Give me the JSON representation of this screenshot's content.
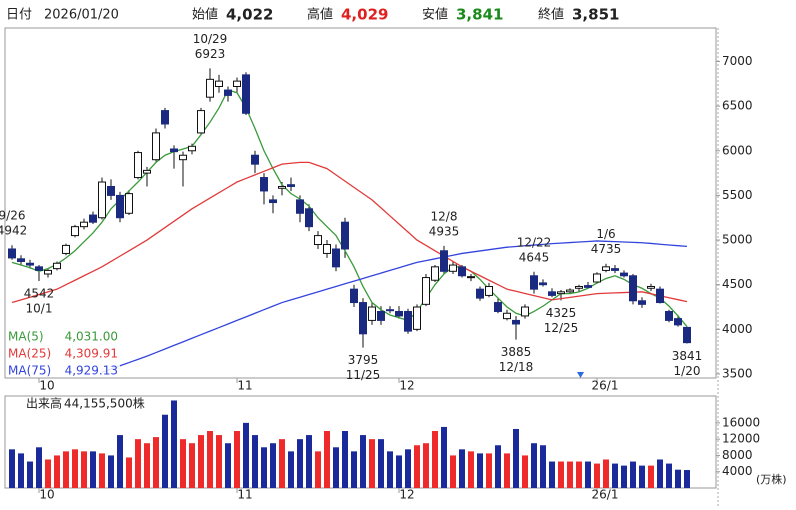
{
  "header": {
    "date_label": "日付",
    "date": "2026/01/20",
    "open_label": "始値",
    "open": "4,022",
    "high_label": "高値",
    "high": "4,029",
    "low_label": "安値",
    "low": "3,841",
    "close_label": "終値",
    "close": "3,851"
  },
  "chart_data": {
    "type": "candlestick",
    "categories": [
      null,
      null,
      null,
      "10",
      null,
      null,
      null,
      null,
      null,
      null,
      null,
      null,
      null,
      null,
      null,
      null,
      null,
      null,
      null,
      null,
      null,
      null,
      null,
      null,
      null,
      "11",
      null,
      null,
      null,
      null,
      null,
      null,
      null,
      null,
      null,
      null,
      null,
      null,
      null,
      null,
      null,
      null,
      null,
      "12",
      null,
      null,
      null,
      null,
      null,
      null,
      null,
      null,
      null,
      null,
      null,
      null,
      null,
      null,
      null,
      null,
      null,
      null,
      null,
      null,
      null,
      "26/1",
      null,
      null,
      null,
      null,
      null,
      null,
      null,
      null,
      null,
      null
    ],
    "open": [
      4900,
      4790,
      4740,
      4700,
      4620,
      4680,
      4850,
      5050,
      5150,
      5280,
      5250,
      5600,
      5500,
      5300,
      5700,
      5750,
      5900,
      6450,
      6020,
      5900,
      6000,
      6200,
      6600,
      6720,
      6680,
      6720,
      6850,
      5950,
      5700,
      5450,
      5580,
      5620,
      5450,
      5350,
      4950,
      4850,
      4900,
      5200,
      4450,
      4300,
      4100,
      4200,
      4220,
      4200,
      4200,
      4000,
      4280,
      4550,
      4880,
      4650,
      4700,
      4580,
      4450,
      4380,
      4300,
      4120,
      4100,
      4150,
      4600,
      4520,
      4420,
      4400,
      4420,
      4460,
      4490,
      4530,
      4660,
      4680,
      4630,
      4600,
      4320,
      4460,
      4450,
      4200,
      4120,
      4022
    ],
    "high": [
      4942,
      4830,
      4780,
      4720,
      4680,
      4760,
      4960,
      5170,
      5240,
      5320,
      5700,
      5680,
      5540,
      5560,
      6000,
      5820,
      6250,
      6480,
      6060,
      5990,
      6080,
      6480,
      6923,
      6850,
      6720,
      6820,
      6880,
      6000,
      5750,
      5500,
      5650,
      5700,
      5500,
      5400,
      5100,
      5000,
      4950,
      5250,
      4500,
      4350,
      4300,
      4260,
      4260,
      4260,
      4230,
      4280,
      4620,
      4720,
      4935,
      4760,
      4720,
      4620,
      4480,
      4520,
      4350,
      4220,
      4150,
      4280,
      4645,
      4560,
      4460,
      4440,
      4460,
      4500,
      4530,
      4640,
      4735,
      4720,
      4660,
      4620,
      4360,
      4510,
      4480,
      4220,
      4160,
      4029
    ],
    "low": [
      4780,
      4720,
      4680,
      4542,
      4580,
      4660,
      4830,
      5030,
      5120,
      5180,
      5230,
      5450,
      5200,
      5280,
      5680,
      5600,
      5880,
      6250,
      5800,
      5600,
      5960,
      6180,
      6550,
      6650,
      6550,
      6650,
      6400,
      5750,
      5400,
      5300,
      5500,
      5550,
      5200,
      5100,
      4900,
      4800,
      4650,
      4800,
      4250,
      3795,
      4050,
      4050,
      4180,
      4120,
      3950,
      3980,
      4260,
      4530,
      4620,
      4620,
      4580,
      4540,
      4320,
      4360,
      4180,
      4100,
      3885,
      4120,
      4400,
      4480,
      4360,
      4325,
      4400,
      4420,
      4460,
      4510,
      4640,
      4630,
      4580,
      4280,
      4240,
      4430,
      4290,
      4080,
      4030,
      3841
    ],
    "close": [
      4800,
      4760,
      4720,
      4660,
      4660,
      4740,
      4940,
      5150,
      5200,
      5200,
      5650,
      5500,
      5250,
      5520,
      5980,
      5780,
      6200,
      6300,
      5990,
      5950,
      6050,
      6450,
      6800,
      6780,
      6620,
      6780,
      6420,
      5850,
      5550,
      5420,
      5600,
      5600,
      5300,
      5150,
      5050,
      4950,
      4700,
      4900,
      4300,
      3950,
      4250,
      4100,
      4210,
      4150,
      3980,
      4250,
      4580,
      4700,
      4650,
      4720,
      4600,
      4590,
      4350,
      4480,
      4200,
      4180,
      4060,
      4250,
      4450,
      4500,
      4380,
      4420,
      4440,
      4480,
      4470,
      4620,
      4700,
      4660,
      4600,
      4320,
      4280,
      4480,
      4300,
      4100,
      4050,
      3851
    ],
    "up_color": "#ffffff",
    "down_color": "#1a2a80",
    "ylim": [
      3455,
      7375
    ],
    "yticks": [
      3500,
      4000,
      4500,
      5000,
      5500,
      6000,
      6500,
      7000
    ],
    "series": [
      {
        "name": "MA(5)",
        "color": "#3a9a3a",
        "current": {
          "value": 4031.0,
          "label": "4,031.00"
        },
        "values": [
          4750,
          4720,
          4690,
          4650,
          4680,
          4730,
          4800,
          4880,
          4980,
          5080,
          5200,
          5350,
          5450,
          5550,
          5650,
          5760,
          5870,
          5950,
          5990,
          6020,
          6050,
          6180,
          6320,
          6480,
          6680,
          6650,
          6480,
          6250,
          6000,
          5800,
          5620,
          5520,
          5460,
          5380,
          5250,
          5150,
          5050,
          4880,
          4700,
          4480,
          4300,
          4220,
          4160,
          4130,
          4100,
          4200,
          4350,
          4500,
          4620,
          4700,
          4700,
          4650,
          4560,
          4450,
          4350,
          4250,
          4180,
          4150,
          4200,
          4260,
          4330,
          4400,
          4400,
          4420,
          4460,
          4520,
          4570,
          4600,
          4560,
          4500,
          4460,
          4400,
          4350,
          4260,
          4150,
          4031.0
        ]
      },
      {
        "name": "MA(25)",
        "color": "#e23a3a",
        "current": {
          "value": 4309.91,
          "label": "4,309.91"
        },
        "values": [
          4300,
          4330,
          4360,
          4390,
          4420,
          4450,
          4500,
          4550,
          4600,
          4650,
          4700,
          4760,
          4820,
          4880,
          4940,
          5000,
          5070,
          5140,
          5210,
          5280,
          5350,
          5410,
          5470,
          5530,
          5590,
          5650,
          5690,
          5730,
          5770,
          5810,
          5850,
          5860,
          5870,
          5870,
          5835,
          5800,
          5730,
          5660,
          5590,
          5520,
          5450,
          5360,
          5270,
          5180,
          5090,
          5000,
          4940,
          4880,
          4820,
          4760,
          4700,
          4650,
          4600,
          4550,
          4500,
          4450,
          4426,
          4402,
          4378,
          4354,
          4330,
          4344,
          4358,
          4372,
          4386,
          4400,
          4404,
          4408,
          4412,
          4416,
          4420,
          4398,
          4376,
          4354,
          4332,
          4309.91
        ]
      },
      {
        "name": "MA(75)",
        "color": "#3344dd",
        "current": {
          "value": 4929.13,
          "label": "4,929.13"
        },
        "values": [
          null,
          null,
          null,
          null,
          null,
          null,
          null,
          null,
          null,
          null,
          3520,
          3556,
          3592,
          3628,
          3664,
          3700,
          3740,
          3780,
          3820,
          3860,
          3900,
          3940,
          3980,
          4020,
          4060,
          4100,
          4140,
          4180,
          4220,
          4260,
          4300,
          4330,
          4360,
          4390,
          4420,
          4450,
          4480,
          4510,
          4540,
          4570,
          4600,
          4630,
          4660,
          4690,
          4720,
          4750,
          4770,
          4790,
          4810,
          4830,
          4850,
          4864,
          4878,
          4892,
          4906,
          4920,
          4928,
          4936,
          4944,
          4952,
          4960,
          4966,
          4972,
          4978,
          4984,
          4990,
          4986,
          4982,
          4978,
          4974,
          4970,
          4962,
          4953,
          4945,
          4937,
          4929.13
        ]
      }
    ],
    "annotations": [
      {
        "date": "9/26",
        "value": 4942,
        "kind": "high"
      },
      {
        "date": "10/1",
        "value": 4542,
        "kind": "low"
      },
      {
        "date": "10/29",
        "value": 6923,
        "kind": "high"
      },
      {
        "date": "11/25",
        "value": 3795,
        "kind": "low"
      },
      {
        "date": "12/8",
        "value": 4935,
        "kind": "high"
      },
      {
        "date": "12/18",
        "value": 3885,
        "kind": "low"
      },
      {
        "date": "12/22",
        "value": 4645,
        "kind": "high"
      },
      {
        "date": "12/25",
        "value": 4325,
        "kind": "low"
      },
      {
        "date": "1/6",
        "value": 4735,
        "kind": "high"
      },
      {
        "date": "1/20",
        "value": 3841,
        "kind": "low"
      }
    ],
    "volume": {
      "title": "出来高",
      "total": "44,155,500株",
      "unit": "(万株)",
      "up_color": "#ee2a2a",
      "down_color": "#1a2a9a",
      "values": [
        9500,
        8500,
        6500,
        10000,
        7000,
        8000,
        9000,
        9500,
        9000,
        9000,
        8500,
        8000,
        13000,
        7500,
        12000,
        11000,
        12500,
        18000,
        21500,
        12000,
        11000,
        13000,
        14000,
        13000,
        11000,
        14000,
        16000,
        13000,
        10000,
        11000,
        12000,
        9000,
        12000,
        13000,
        9000,
        14000,
        10000,
        14000,
        9000,
        13000,
        12000,
        12000,
        9000,
        8000,
        9500,
        10500,
        11000,
        14000,
        15000,
        8000,
        9500,
        9000,
        8500,
        8500,
        10500,
        8500,
        14500,
        8000,
        11000,
        10500,
        6500,
        6500,
        6500,
        6500,
        6500,
        6000,
        7000,
        6000,
        5500,
        6500,
        5500,
        5500,
        7000,
        6000,
        4500,
        4415.55
      ],
      "ylim": [
        0,
        22600
      ],
      "yticks": [
        4000,
        8000,
        12000,
        16000
      ]
    }
  }
}
